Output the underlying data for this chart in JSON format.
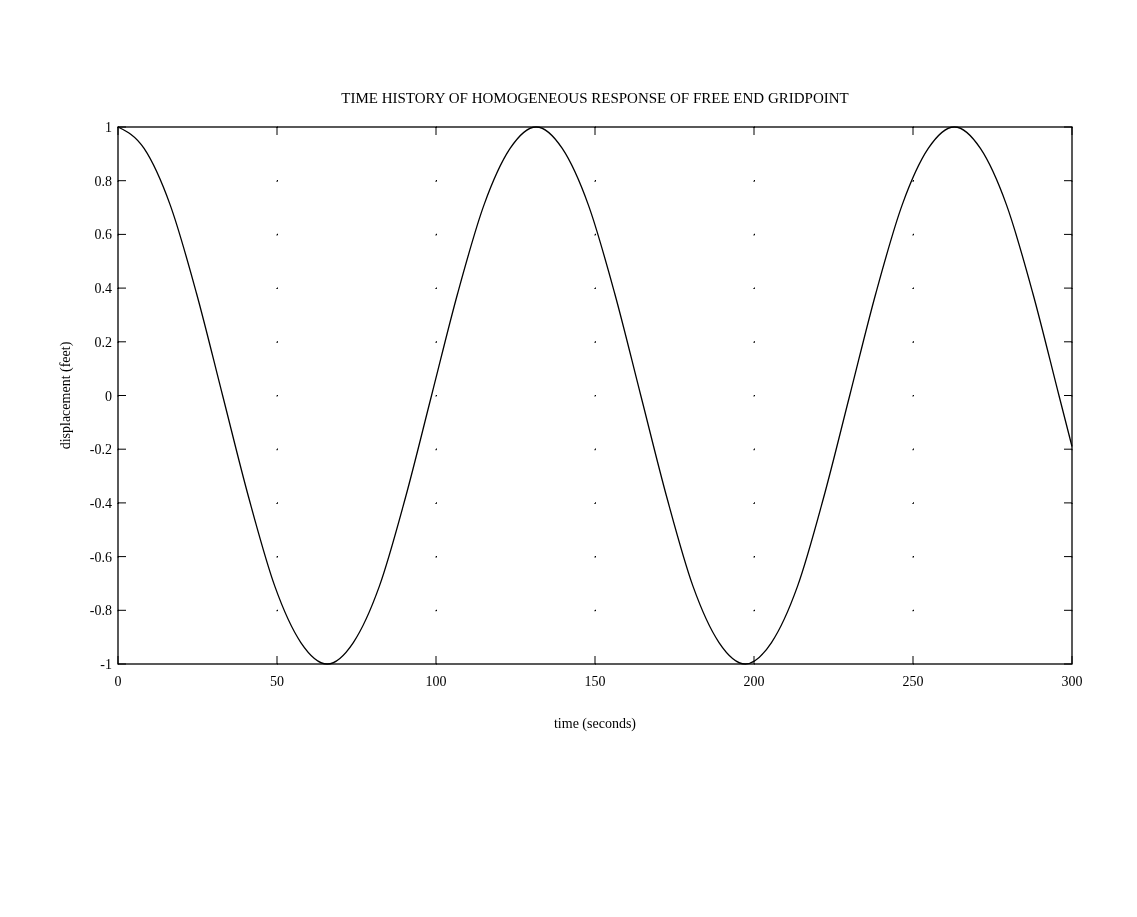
{
  "chart_data": {
    "type": "line",
    "title": "TIME HISTORY OF HOMOGENEOUS RESPONSE OF FREE END GRIDPOINT",
    "xlabel": "time (seconds)",
    "ylabel": "displacement (feet)",
    "series": [
      {
        "color": "#000000",
        "x": [
          0,
          8.2,
          16.4,
          24.7,
          32.9,
          41.1,
          49.3,
          57.5,
          65.8,
          74,
          82.2,
          90.4,
          98.6,
          106.8,
          115.1,
          123.3,
          131.5,
          139.7,
          147.9,
          156.2,
          164.4,
          172.6,
          180.8,
          189,
          197.3,
          205.5,
          213.7,
          221.9,
          230.1,
          238.3,
          246.6,
          254.8,
          263,
          271.2,
          279.4,
          287.7,
          295.9,
          300
        ],
        "values": [
          1,
          0.92,
          0.71,
          0.38,
          0,
          -0.38,
          -0.71,
          -0.92,
          -1,
          -0.92,
          -0.71,
          -0.38,
          0,
          0.38,
          0.71,
          0.92,
          1,
          0.92,
          0.71,
          0.38,
          0,
          -0.38,
          -0.71,
          -0.92,
          -1,
          -0.92,
          -0.71,
          -0.38,
          0,
          0.38,
          0.71,
          0.92,
          1,
          0.92,
          0.71,
          0.38,
          0,
          -0.19
        ]
      }
    ],
    "xlim": [
      0,
      300
    ],
    "xticks": [
      0,
      50,
      100,
      150,
      200,
      250,
      300
    ],
    "ylim": [
      -1,
      1
    ],
    "yticks": [
      -1,
      -0.8,
      -0.6,
      -0.4,
      -0.2,
      0,
      0.2,
      0.4,
      0.6,
      0.8,
      1
    ],
    "grid": true,
    "marker": "none",
    "line_style": "solid"
  }
}
